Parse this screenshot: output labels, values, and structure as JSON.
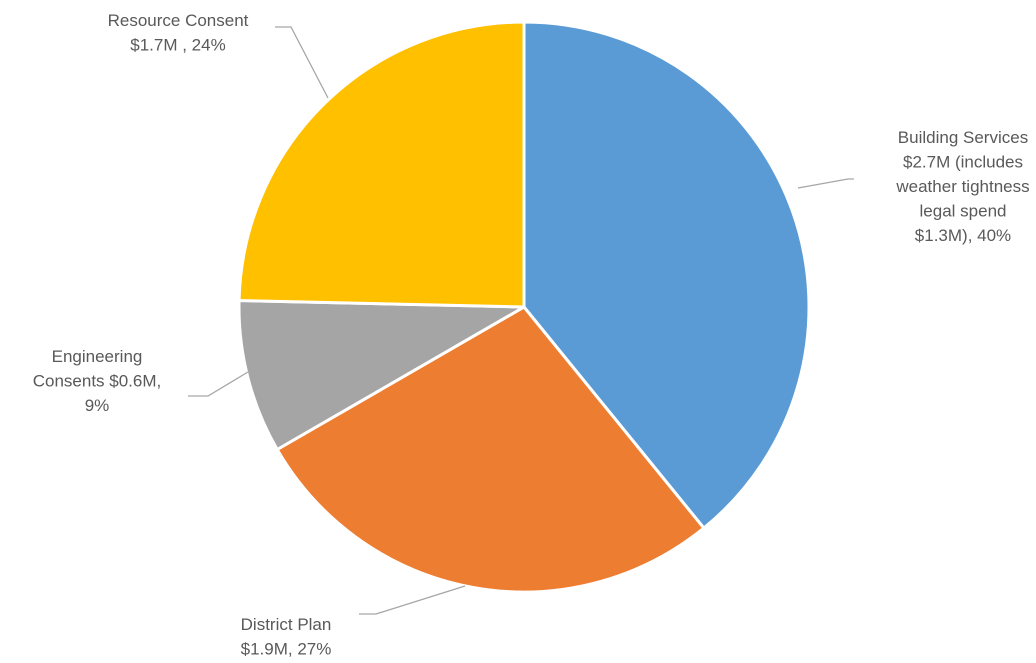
{
  "chart_data": {
    "type": "pie",
    "title": "",
    "start_angle_deg": 0,
    "direction": "clockwise",
    "slices": [
      {
        "name": "Building Services",
        "value": 2.7,
        "percent": 40,
        "color": "#5b9bd5",
        "label_lines": [
          "Building Services",
          "$2.7M (includes",
          "weather tightness",
          "legal spend",
          "$1.3M), 40%"
        ]
      },
      {
        "name": "District Plan",
        "value": 1.9,
        "percent": 27,
        "color": "#ed7d31",
        "label_lines": [
          "District Plan",
          "$1.9M, 27%"
        ]
      },
      {
        "name": "Engineering Consents",
        "value": 0.6,
        "percent": 9,
        "color": "#a5a5a5",
        "label_lines": [
          "Engineering",
          "Consents $0.6M,",
          "9%"
        ]
      },
      {
        "name": "Resource Consent",
        "value": 1.7,
        "percent": 24,
        "color": "#ffc000",
        "label_lines": [
          "Resource Consent",
          "$1.7M , 24%"
        ]
      }
    ]
  }
}
